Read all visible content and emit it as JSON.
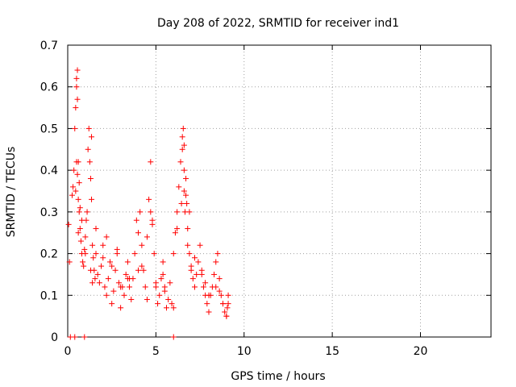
{
  "chart_data": {
    "type": "scatter",
    "title": "Day 208 of 2022, SRMTID for receiver ind1",
    "xlabel": "GPS time / hours",
    "ylabel": "SRMTID / TECUs",
    "xlim": [
      0,
      24
    ],
    "ylim": [
      0,
      0.7
    ],
    "x_ticks": [
      0,
      5,
      10,
      15,
      20
    ],
    "y_ticks": [
      0,
      0.1,
      0.2,
      0.3,
      0.4,
      0.5,
      0.6,
      0.7
    ],
    "x_tick_labels": [
      "0",
      "5",
      "10",
      "15",
      "20"
    ],
    "y_tick_labels": [
      "0",
      "0.1",
      "0.2",
      "0.3",
      "0.4",
      "0.5",
      "0.6",
      "0.7"
    ],
    "grid": true,
    "marker": "+",
    "series": [
      {
        "name": "SRMTID",
        "color": "#ff0000",
        "x": [
          0.05,
          0.1,
          0.25,
          0.3,
          0.35,
          0.4,
          0.45,
          0.5,
          0.5,
          0.55,
          0.55,
          0.6,
          0.6,
          0.65,
          0.65,
          0.7,
          0.7,
          0.75,
          0.8,
          0.85,
          0.9,
          0.95,
          1.0,
          1.05,
          1.1,
          1.15,
          1.2,
          1.25,
          1.3,
          1.35,
          1.4,
          1.45,
          1.5,
          1.55,
          1.6,
          1.7,
          1.8,
          1.9,
          2.0,
          2.1,
          2.2,
          2.3,
          2.4,
          2.5,
          2.6,
          2.7,
          2.8,
          2.9,
          3.0,
          3.1,
          3.2,
          3.3,
          3.4,
          3.5,
          3.6,
          3.7,
          3.8,
          3.9,
          4.0,
          4.1,
          4.2,
          4.3,
          4.4,
          4.5,
          4.6,
          4.7,
          4.8,
          4.9,
          5.0,
          5.1,
          5.2,
          5.3,
          5.4,
          5.5,
          5.6,
          5.7,
          5.8,
          5.9,
          6.0,
          6.1,
          6.2,
          6.3,
          6.4,
          6.5,
          6.5,
          6.55,
          6.6,
          6.6,
          6.65,
          6.7,
          6.75,
          6.8,
          6.9,
          7.0,
          7.1,
          7.2,
          7.3,
          7.4,
          7.5,
          7.6,
          7.7,
          7.8,
          7.9,
          8.0,
          8.1,
          8.2,
          8.3,
          8.4,
          8.5,
          8.6,
          8.7,
          8.8,
          8.9,
          9.0,
          9.05,
          9.1,
          0.8,
          1.3,
          1.4,
          2.0,
          2.5,
          3.0,
          3.5,
          4.0,
          4.5,
          5.0,
          5.5,
          6.0,
          6.8,
          7.2,
          7.6,
          8.0,
          8.4,
          8.8,
          9.0,
          0.45,
          0.5,
          0.55,
          1.35,
          4.7,
          6.45,
          6.6,
          6.7,
          6.9,
          0.6,
          1.0,
          1.6,
          2.2,
          2.8,
          3.4,
          4.2,
          4.8,
          5.4,
          6.2,
          7.0,
          7.8,
          8.6,
          9.1,
          0.15,
          0.4,
          0.95,
          6.0
        ],
        "y": [
          0.27,
          0.18,
          0.34,
          0.36,
          0.4,
          0.5,
          0.55,
          0.6,
          0.62,
          0.64,
          0.57,
          0.42,
          0.33,
          0.3,
          0.37,
          0.26,
          0.31,
          0.23,
          0.2,
          0.18,
          0.17,
          0.21,
          0.24,
          0.28,
          0.3,
          0.45,
          0.5,
          0.42,
          0.38,
          0.33,
          0.22,
          0.19,
          0.16,
          0.14,
          0.2,
          0.15,
          0.13,
          0.17,
          0.22,
          0.12,
          0.1,
          0.14,
          0.18,
          0.08,
          0.11,
          0.16,
          0.2,
          0.13,
          0.07,
          0.12,
          0.1,
          0.15,
          0.18,
          0.12,
          0.09,
          0.14,
          0.2,
          0.28,
          0.25,
          0.3,
          0.22,
          0.16,
          0.12,
          0.24,
          0.33,
          0.3,
          0.28,
          0.2,
          0.12,
          0.08,
          0.1,
          0.14,
          0.18,
          0.12,
          0.07,
          0.09,
          0.13,
          0.08,
          0.2,
          0.25,
          0.3,
          0.36,
          0.42,
          0.45,
          0.48,
          0.5,
          0.46,
          0.35,
          0.3,
          0.38,
          0.32,
          0.26,
          0.2,
          0.17,
          0.14,
          0.12,
          0.15,
          0.18,
          0.22,
          0.16,
          0.12,
          0.1,
          0.08,
          0.06,
          0.1,
          0.12,
          0.15,
          0.18,
          0.2,
          0.14,
          0.1,
          0.08,
          0.06,
          0.05,
          0.07,
          0.1,
          0.28,
          0.16,
          0.13,
          0.19,
          0.17,
          0.12,
          0.14,
          0.16,
          0.09,
          0.13,
          0.11,
          0.07,
          0.22,
          0.19,
          0.15,
          0.1,
          0.12,
          0.08,
          0.05,
          0.35,
          0.42,
          0.39,
          0.48,
          0.42,
          0.32,
          0.4,
          0.34,
          0.3,
          0.25,
          0.2,
          0.26,
          0.24,
          0.21,
          0.14,
          0.17,
          0.27,
          0.15,
          0.26,
          0.16,
          0.13,
          0.11,
          0.08,
          0.0,
          0.0,
          0.0,
          0.0
        ]
      }
    ]
  }
}
